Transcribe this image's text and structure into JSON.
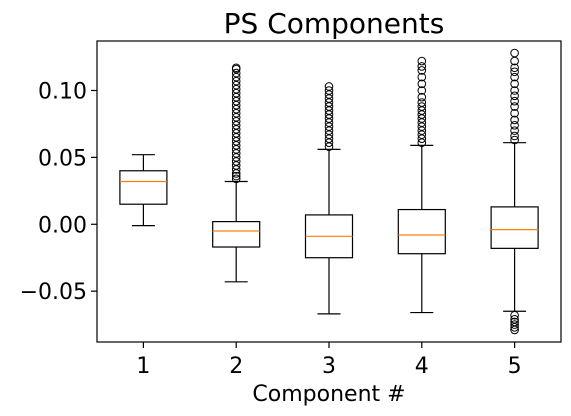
{
  "chart_data": {
    "type": "box",
    "title": "PS Components",
    "xlabel": "Component #",
    "ylabel": "",
    "ylim": [
      -0.088,
      0.137
    ],
    "xlim": [
      0.5,
      5.5
    ],
    "yticks": [
      {
        "value": 0.1,
        "label": "0.10"
      },
      {
        "value": 0.05,
        "label": "0.05"
      },
      {
        "value": 0.0,
        "label": "0.00"
      },
      {
        "value": -0.05,
        "label": "−0.05"
      }
    ],
    "categories": [
      "1",
      "2",
      "3",
      "4",
      "5"
    ],
    "colors": {
      "box": "#000000",
      "median": "#ff7f0e",
      "flier": "#000000"
    },
    "boxes": [
      {
        "x": 1,
        "whisker_low": -0.001,
        "q1": 0.015,
        "median": 0.032,
        "q3": 0.04,
        "whisker_high": 0.052,
        "fliers": []
      },
      {
        "x": 2,
        "whisker_low": -0.043,
        "q1": -0.017,
        "median": -0.005,
        "q3": 0.002,
        "whisker_high": 0.032,
        "fliers": [
          0.034,
          0.036,
          0.038,
          0.041,
          0.044,
          0.047,
          0.05,
          0.053,
          0.056,
          0.059,
          0.062,
          0.065,
          0.068,
          0.071,
          0.074,
          0.077,
          0.08,
          0.083,
          0.086,
          0.089,
          0.092,
          0.095,
          0.098,
          0.101,
          0.104,
          0.107,
          0.11,
          0.113,
          0.116,
          0.117
        ]
      },
      {
        "x": 3,
        "whisker_low": -0.067,
        "q1": -0.025,
        "median": -0.009,
        "q3": 0.007,
        "whisker_high": 0.056,
        "fliers": [
          0.058,
          0.061,
          0.064,
          0.067,
          0.07,
          0.073,
          0.076,
          0.079,
          0.082,
          0.085,
          0.088,
          0.091,
          0.094,
          0.097,
          0.1,
          0.103
        ]
      },
      {
        "x": 4,
        "whisker_low": -0.066,
        "q1": -0.022,
        "median": -0.008,
        "q3": 0.011,
        "whisker_high": 0.059,
        "fliers": [
          0.061,
          0.064,
          0.067,
          0.07,
          0.073,
          0.076,
          0.079,
          0.082,
          0.085,
          0.088,
          0.091,
          0.095,
          0.1,
          0.105,
          0.11,
          0.115,
          0.118,
          0.122
        ]
      },
      {
        "x": 5,
        "whisker_low": -0.065,
        "q1": -0.018,
        "median": -0.004,
        "q3": 0.013,
        "whisker_high": 0.061,
        "fliers": [
          0.063,
          0.066,
          0.07,
          0.074,
          0.078,
          0.083,
          0.088,
          0.092,
          0.096,
          0.1,
          0.105,
          0.11,
          0.114,
          0.117,
          0.122,
          0.128,
          -0.068,
          -0.071,
          -0.073,
          -0.075,
          -0.077,
          -0.079
        ]
      }
    ]
  }
}
